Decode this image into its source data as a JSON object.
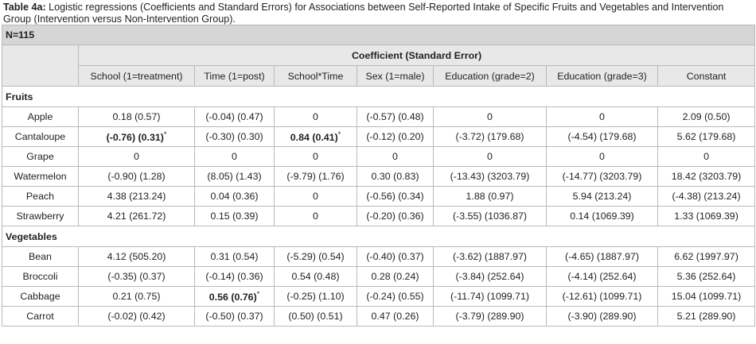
{
  "caption": {
    "label": "Table 4a:",
    "text": " Logistic regressions (Coefficients and Standard Errors) for Associations between Self-Reported Intake of Specific Fruits and Vegetables and Intervention Group (Intervention versus Non-Intervention Group)."
  },
  "table": {
    "n_label": "N=115",
    "group_header": "Coefficient (Standard Error)",
    "columns": [
      "School (1=treatment)",
      "Time (1=post)",
      "School*Time",
      "Sex (1=male)",
      "Education (grade=2)",
      "Education (grade=3)",
      "Constant"
    ],
    "sections": [
      {
        "title": "Fruits",
        "rows": [
          {
            "name": "Apple",
            "cells": [
              {
                "v": "0.18 (0.57)"
              },
              {
                "v": "(-0.04) (0.47)"
              },
              {
                "v": "0"
              },
              {
                "v": "(-0.57) (0.48)"
              },
              {
                "v": "0"
              },
              {
                "v": "0"
              },
              {
                "v": "2.09 (0.50)"
              }
            ]
          },
          {
            "name": "Cantaloupe",
            "cells": [
              {
                "v": "(-0.76) (0.31)",
                "bold": true,
                "star": "*"
              },
              {
                "v": "(-0.30) (0.30)"
              },
              {
                "v": "0.84 (0.41)",
                "bold": true,
                "star": "*"
              },
              {
                "v": "(-0.12) (0.20)"
              },
              {
                "v": "(-3.72) (179.68)"
              },
              {
                "v": "(-4.54) (179.68)"
              },
              {
                "v": "5.62 (179.68)"
              }
            ]
          },
          {
            "name": "Grape",
            "cells": [
              {
                "v": "0"
              },
              {
                "v": "0"
              },
              {
                "v": "0"
              },
              {
                "v": "0"
              },
              {
                "v": "0"
              },
              {
                "v": "0"
              },
              {
                "v": "0"
              }
            ]
          },
          {
            "name": "Watermelon",
            "cells": [
              {
                "v": "(-0.90) (1.28)"
              },
              {
                "v": "(8.05) (1.43)"
              },
              {
                "v": "(-9.79) (1.76)"
              },
              {
                "v": "0.30 (0.83)"
              },
              {
                "v": "(-13.43) (3203.79)"
              },
              {
                "v": "(-14.77) (3203.79)"
              },
              {
                "v": "18.42 (3203.79)"
              }
            ]
          },
          {
            "name": "Peach",
            "cells": [
              {
                "v": "4.38 (213.24)"
              },
              {
                "v": "0.04 (0.36)"
              },
              {
                "v": "0"
              },
              {
                "v": "(-0.56) (0.34)"
              },
              {
                "v": "1.88 (0.97)"
              },
              {
                "v": "5.94 (213.24)"
              },
              {
                "v": "(-4.38) (213.24)"
              }
            ]
          },
          {
            "name": "Strawberry",
            "cells": [
              {
                "v": "4.21 (261.72)"
              },
              {
                "v": "0.15 (0.39)"
              },
              {
                "v": "0"
              },
              {
                "v": "(-0.20) (0.36)"
              },
              {
                "v": "(-3.55) (1036.87)"
              },
              {
                "v": "0.14 (1069.39)"
              },
              {
                "v": "1.33 (1069.39)"
              }
            ]
          }
        ]
      },
      {
        "title": "Vegetables",
        "rows": [
          {
            "name": "Bean",
            "cells": [
              {
                "v": "4.12 (505.20)"
              },
              {
                "v": "0.31 (0.54)"
              },
              {
                "v": "(-5.29) (0.54)"
              },
              {
                "v": "(-0.40) (0.37)"
              },
              {
                "v": "(-3.62) (1887.97)"
              },
              {
                "v": "(-4.65) (1887.97)"
              },
              {
                "v": "6.62 (1997.97)"
              }
            ]
          },
          {
            "name": "Broccoli",
            "cells": [
              {
                "v": "(-0.35) (0.37)"
              },
              {
                "v": "(-0.14) (0.36)"
              },
              {
                "v": "0.54 (0.48)"
              },
              {
                "v": "0.28 (0.24)"
              },
              {
                "v": "(-3.84) (252.64)"
              },
              {
                "v": "(-4.14) (252.64)"
              },
              {
                "v": "5.36 (252.64)"
              }
            ]
          },
          {
            "name": "Cabbage",
            "cells": [
              {
                "v": "0.21 (0.75)"
              },
              {
                "v": "0.56 (0.76)",
                "bold": true,
                "star": "*"
              },
              {
                "v": "(-0.25) (1.10)"
              },
              {
                "v": "(-0.24) (0.55)"
              },
              {
                "v": "(-11.74) (1099.71)"
              },
              {
                "v": "(-12.61) (1099.71)"
              },
              {
                "v": "15.04 (1099.71)"
              }
            ]
          },
          {
            "name": "Carrot",
            "cells": [
              {
                "v": "(-0.02) (0.42)"
              },
              {
                "v": "(-0.50) (0.37)"
              },
              {
                "v": "(0.50) (0.51)"
              },
              {
                "v": "0.47 (0.26)"
              },
              {
                "v": "(-3.79) (289.90)"
              },
              {
                "v": "(-3.90) (289.90)"
              },
              {
                "v": "5.21 (289.90)"
              }
            ]
          }
        ]
      }
    ]
  }
}
